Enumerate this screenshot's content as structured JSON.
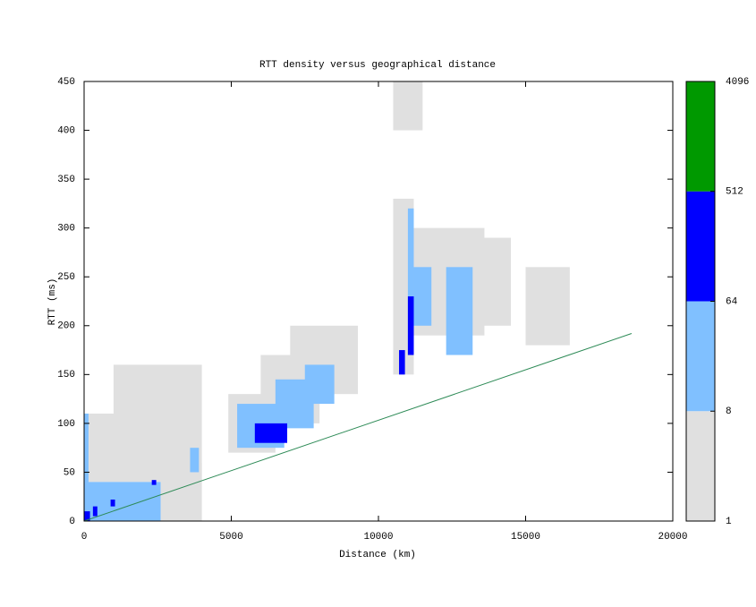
{
  "chart_data": {
    "type": "heatmap",
    "title": "RTT density versus geographical distance",
    "xlabel": "Distance (km)",
    "ylabel": "RTT (ms)",
    "xlim": [
      0,
      20000
    ],
    "ylim": [
      0,
      450
    ],
    "xticks": [
      0,
      5000,
      10000,
      15000,
      20000
    ],
    "yticks": [
      0,
      50,
      100,
      150,
      200,
      250,
      300,
      350,
      400,
      450
    ],
    "cells": [
      {
        "x": [
          0,
          4000
        ],
        "y": [
          40,
          110
        ],
        "value": 2
      },
      {
        "x": [
          2600,
          4000
        ],
        "y": [
          0,
          60
        ],
        "value": 2
      },
      {
        "x": [
          1000,
          4000
        ],
        "y": [
          110,
          160
        ],
        "value": 2
      },
      {
        "x": [
          0,
          2600
        ],
        "y": [
          0,
          40
        ],
        "value": 20
      },
      {
        "x": [
          0,
          150
        ],
        "y": [
          0,
          110
        ],
        "value": 20
      },
      {
        "x": [
          3600,
          3900
        ],
        "y": [
          50,
          75
        ],
        "value": 20
      },
      {
        "x": [
          0,
          200
        ],
        "y": [
          0,
          10
        ],
        "value": 100
      },
      {
        "x": [
          300,
          450
        ],
        "y": [
          5,
          15
        ],
        "value": 100
      },
      {
        "x": [
          900,
          1050
        ],
        "y": [
          15,
          22
        ],
        "value": 100
      },
      {
        "x": [
          2300,
          2450
        ],
        "y": [
          37,
          42
        ],
        "value": 100
      },
      {
        "x": [
          4900,
          6500
        ],
        "y": [
          70,
          130
        ],
        "value": 2
      },
      {
        "x": [
          6000,
          8000
        ],
        "y": [
          100,
          170
        ],
        "value": 2
      },
      {
        "x": [
          7000,
          9300
        ],
        "y": [
          130,
          200
        ],
        "value": 2
      },
      {
        "x": [
          5200,
          6800
        ],
        "y": [
          75,
          120
        ],
        "value": 20
      },
      {
        "x": [
          6500,
          7800
        ],
        "y": [
          95,
          145
        ],
        "value": 20
      },
      {
        "x": [
          7500,
          8500
        ],
        "y": [
          120,
          160
        ],
        "value": 20
      },
      {
        "x": [
          5800,
          6900
        ],
        "y": [
          80,
          100
        ],
        "value": 100
      },
      {
        "x": [
          10500,
          11200
        ],
        "y": [
          150,
          330
        ],
        "value": 2
      },
      {
        "x": [
          11000,
          13600
        ],
        "y": [
          190,
          300
        ],
        "value": 2
      },
      {
        "x": [
          12000,
          14500
        ],
        "y": [
          200,
          290
        ],
        "value": 2
      },
      {
        "x": [
          10500,
          11500
        ],
        "y": [
          400,
          450
        ],
        "value": 2
      },
      {
        "x": [
          15000,
          16500
        ],
        "y": [
          180,
          260
        ],
        "value": 2
      },
      {
        "x": [
          11000,
          11200
        ],
        "y": [
          170,
          320
        ],
        "value": 20
      },
      {
        "x": [
          11200,
          11800
        ],
        "y": [
          200,
          260
        ],
        "value": 20
      },
      {
        "x": [
          12300,
          13200
        ],
        "y": [
          170,
          260
        ],
        "value": 20
      },
      {
        "x": [
          10700,
          10900
        ],
        "y": [
          150,
          175
        ],
        "value": 100
      },
      {
        "x": [
          11000,
          11200
        ],
        "y": [
          170,
          230
        ],
        "value": 100
      }
    ],
    "line": {
      "color": "#2e8b57",
      "x": [
        0,
        18600
      ],
      "values": [
        0,
        192
      ]
    },
    "colorbar": {
      "log_scale": true,
      "levels": [
        1,
        8,
        64,
        512,
        4096
      ],
      "colors": [
        "#e0e0e0",
        "#80c0ff",
        "#0000ff",
        "#009900"
      ]
    }
  }
}
